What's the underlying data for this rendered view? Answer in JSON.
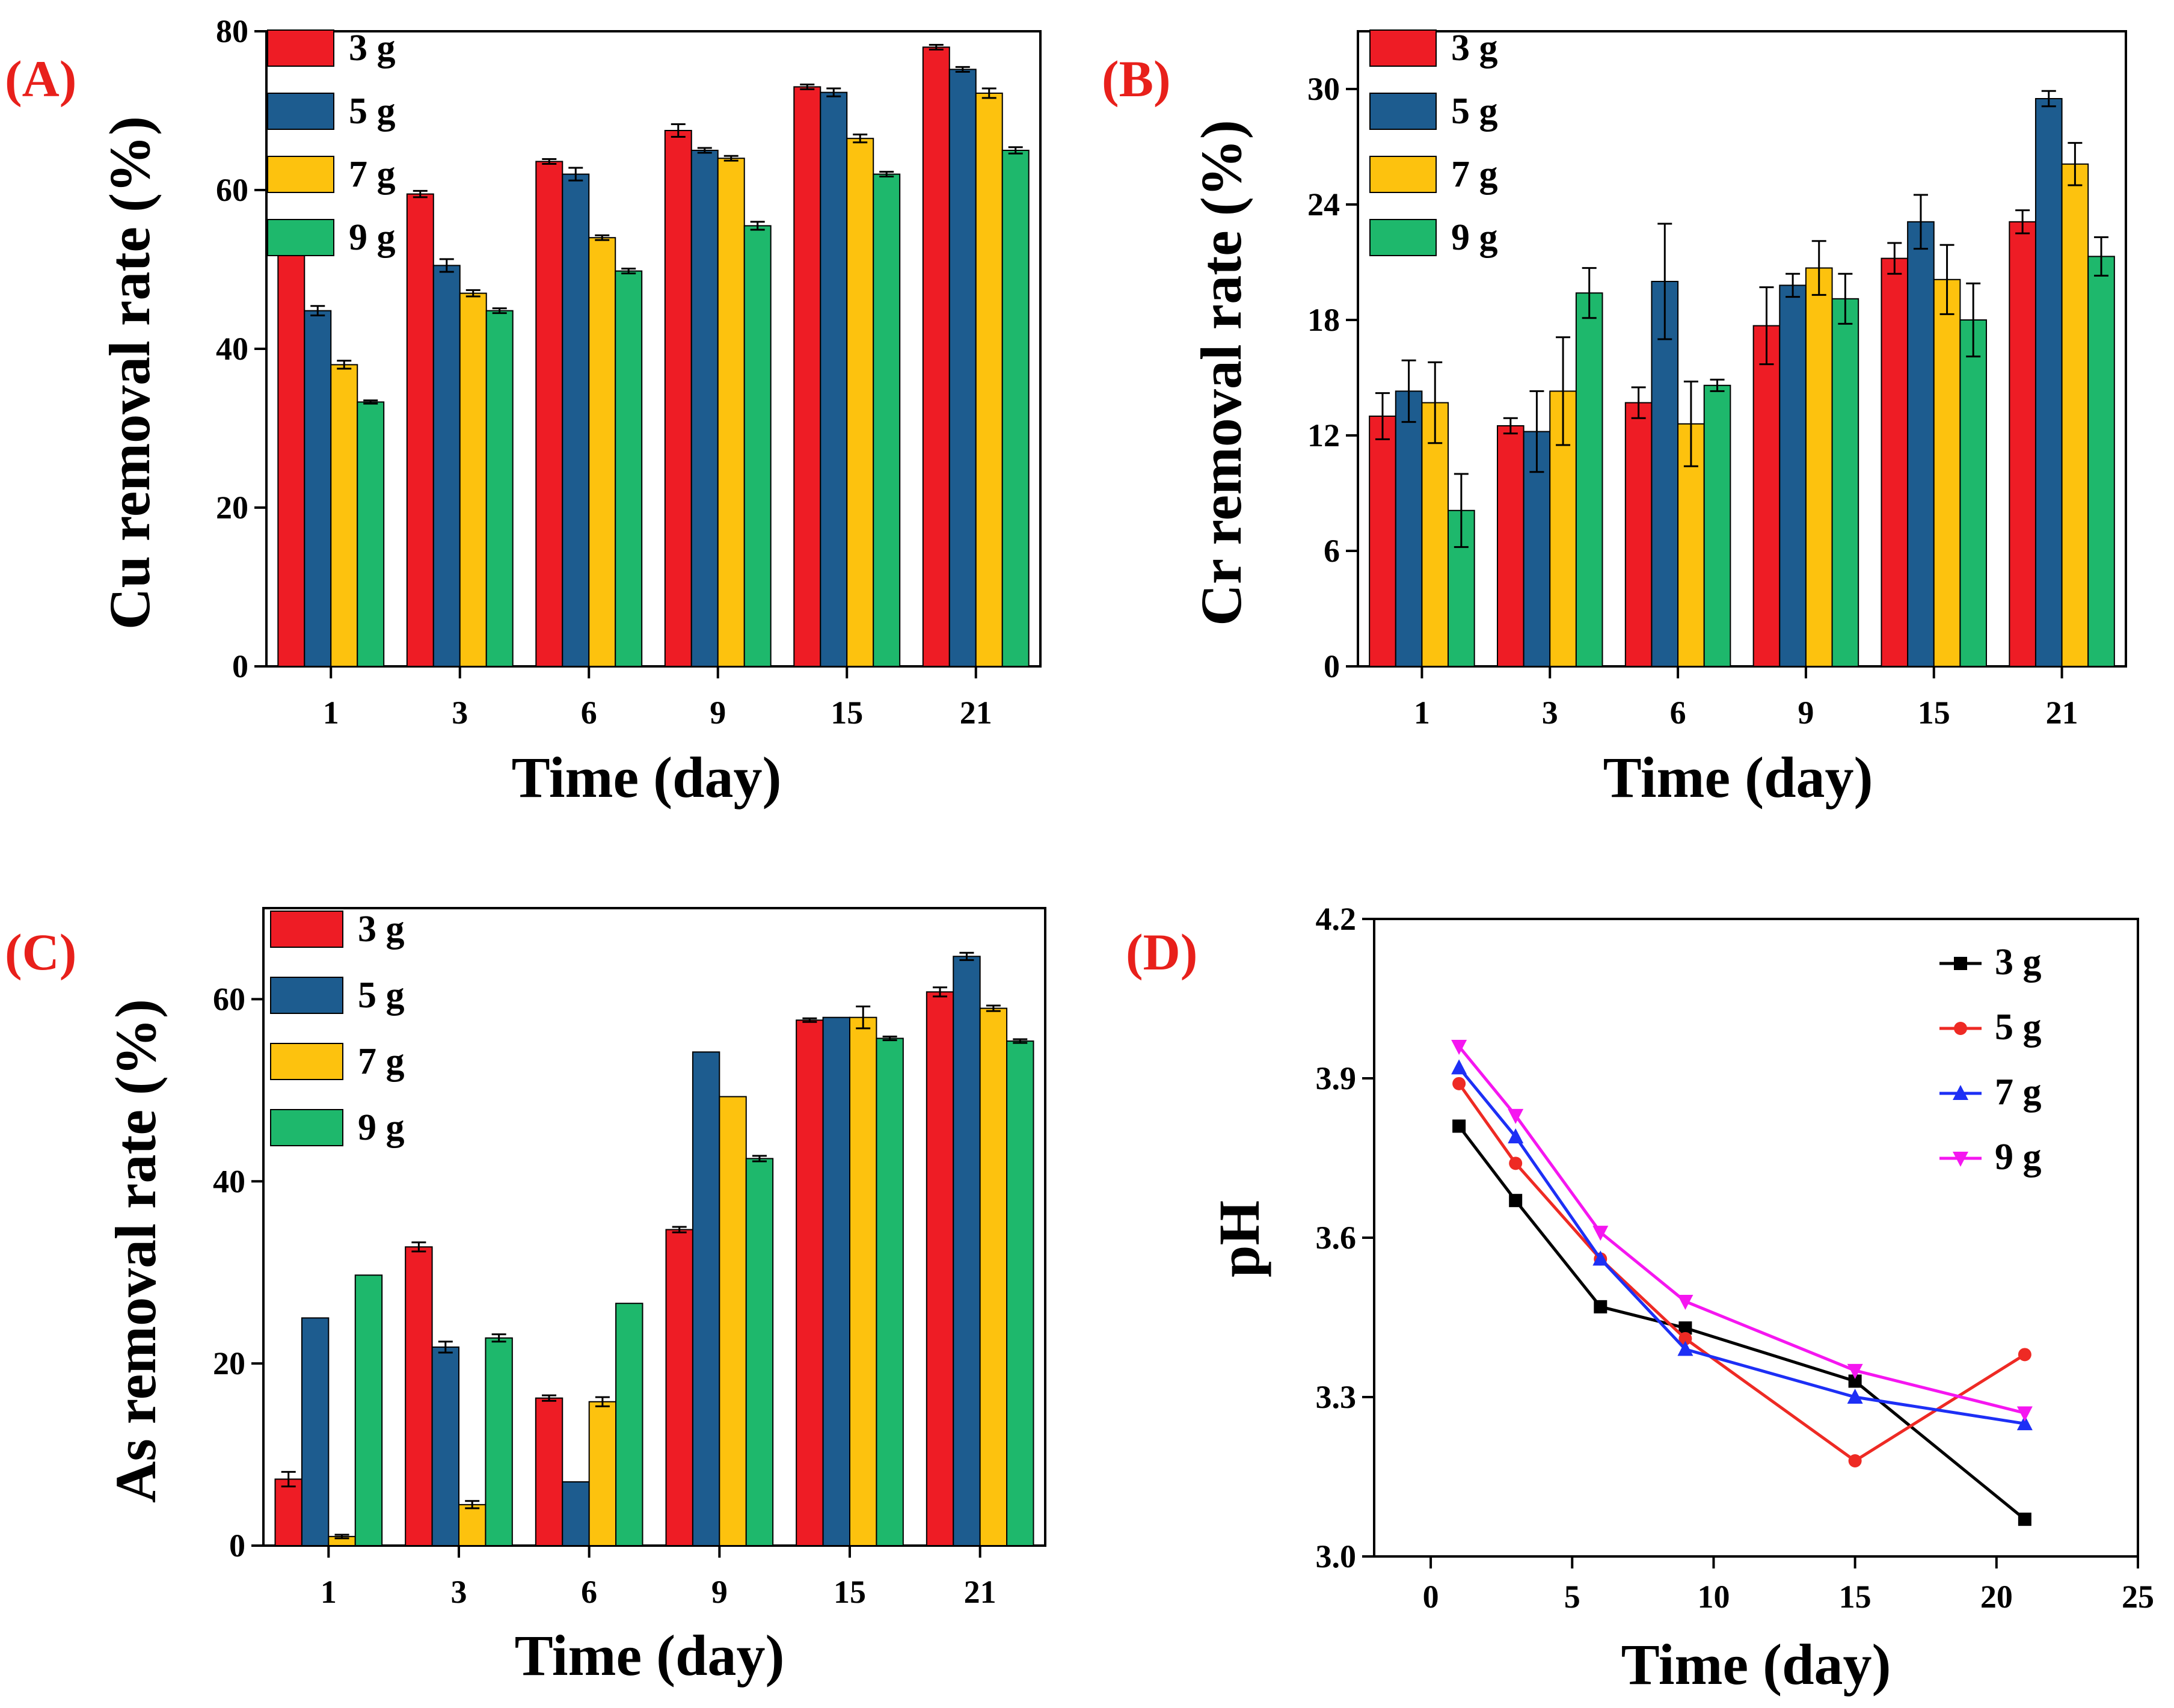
{
  "colors": {
    "3 g": "#ee1c25",
    "5 g": "#1d5c8f",
    "7 g": "#fdc20e",
    "9 g": "#1eb86c",
    "axis": "#000000",
    "panel_label": "#e8201b"
  },
  "line_colors": {
    "3 g": "#000000",
    "5 g": "#ee2a24",
    "7 g": "#1d2ff5",
    "9 g": "#f516f0"
  },
  "chart_data": [
    {
      "id": "A",
      "panel_label": "(A)",
      "type": "bar",
      "title": "",
      "xlabel": "Time (day)",
      "ylabel": "Cu removal rate (%)",
      "categories": [
        "1",
        "3",
        "6",
        "9",
        "15",
        "21"
      ],
      "ylim": [
        0,
        80
      ],
      "yticks": [
        0,
        20,
        40,
        60,
        80
      ],
      "legend_position": "top-left",
      "series": [
        {
          "name": "3 g",
          "values": [
            52.5,
            59.5,
            63.6,
            67.5,
            73.0,
            78.0
          ],
          "errors": [
            0.4,
            0.4,
            0.3,
            0.8,
            0.3,
            0.3
          ]
        },
        {
          "name": "5 g",
          "values": [
            44.8,
            50.5,
            62.0,
            65.0,
            72.3,
            75.2
          ],
          "errors": [
            0.6,
            0.8,
            0.8,
            0.3,
            0.5,
            0.3
          ]
        },
        {
          "name": "7 g",
          "values": [
            38.0,
            47.0,
            54.0,
            64.0,
            66.5,
            72.2
          ],
          "errors": [
            0.5,
            0.4,
            0.3,
            0.3,
            0.5,
            0.6
          ]
        },
        {
          "name": "9 g",
          "values": [
            33.3,
            44.8,
            49.8,
            55.5,
            62.0,
            65.0
          ],
          "errors": [
            0.2,
            0.3,
            0.3,
            0.5,
            0.3,
            0.4
          ]
        }
      ]
    },
    {
      "id": "B",
      "panel_label": "(B)",
      "type": "bar",
      "title": "",
      "xlabel": "Time (day)",
      "ylabel": "Cr removal rate (%)",
      "categories": [
        "1",
        "3",
        "6",
        "9",
        "15",
        "21"
      ],
      "ylim": [
        0,
        33
      ],
      "yticks": [
        0,
        6,
        12,
        18,
        24,
        30
      ],
      "legend_position": "top-left",
      "series": [
        {
          "name": "3 g",
          "values": [
            13.0,
            12.5,
            13.7,
            17.7,
            21.2,
            23.1
          ],
          "errors": [
            1.2,
            0.4,
            0.8,
            2.0,
            0.8,
            0.6
          ]
        },
        {
          "name": "5 g",
          "values": [
            14.3,
            12.2,
            20.0,
            19.8,
            23.1,
            29.5
          ],
          "errors": [
            1.6,
            2.1,
            3.0,
            0.6,
            1.4,
            0.4
          ]
        },
        {
          "name": "7 g",
          "values": [
            13.7,
            14.3,
            12.6,
            20.7,
            20.1,
            26.1
          ],
          "errors": [
            2.1,
            2.8,
            2.2,
            1.4,
            1.8,
            1.1
          ]
        },
        {
          "name": "9 g",
          "values": [
            8.1,
            19.4,
            14.6,
            19.1,
            18.0,
            21.3
          ],
          "errors": [
            1.9,
            1.3,
            0.3,
            1.3,
            1.9,
            1.0
          ]
        }
      ]
    },
    {
      "id": "C",
      "panel_label": "(C)",
      "type": "bar",
      "title": "",
      "xlabel": "Time (day)",
      "ylabel": "As removal rate (%)",
      "categories": [
        "1",
        "3",
        "6",
        "9",
        "15",
        "21"
      ],
      "ylim": [
        0,
        70
      ],
      "yticks": [
        0,
        20,
        40,
        60
      ],
      "legend_position": "top-left",
      "series": [
        {
          "name": "3 g",
          "values": [
            7.3,
            32.8,
            16.2,
            34.7,
            57.7,
            60.8
          ],
          "errors": [
            0.8,
            0.5,
            0.3,
            0.3,
            0.2,
            0.5
          ]
        },
        {
          "name": "5 g",
          "values": [
            25.0,
            21.8,
            7.0,
            54.2,
            58.0,
            64.7
          ],
          "errors": [
            0.0,
            0.6,
            0.0,
            0.0,
            0.0,
            0.4
          ]
        },
        {
          "name": "7 g",
          "values": [
            1.0,
            4.5,
            15.8,
            49.3,
            58.0,
            59.0
          ],
          "errors": [
            0.2,
            0.4,
            0.5,
            0.0,
            1.2,
            0.3
          ]
        },
        {
          "name": "9 g",
          "values": [
            29.7,
            22.8,
            26.6,
            42.5,
            55.7,
            55.4
          ],
          "errors": [
            0.0,
            0.4,
            0.0,
            0.3,
            0.2,
            0.2
          ]
        }
      ]
    },
    {
      "id": "D",
      "panel_label": "(D)",
      "type": "line",
      "title": "",
      "xlabel": "Time (day)",
      "ylabel": "pH",
      "x": [
        1,
        3,
        6,
        9,
        15,
        21
      ],
      "xlim": [
        -2,
        25
      ],
      "ylim": [
        3.0,
        4.2
      ],
      "xticks": [
        0,
        5,
        10,
        15,
        20,
        25
      ],
      "yticks": [
        3.0,
        3.3,
        3.6,
        3.9,
        4.2
      ],
      "ytick_labels": [
        "3.0",
        "3.3",
        "3.6",
        "3.9",
        "4.2"
      ],
      "legend_position": "top-right",
      "series": [
        {
          "name": "3 g",
          "marker": "square",
          "values": [
            3.81,
            3.67,
            3.47,
            3.43,
            3.33,
            3.07
          ]
        },
        {
          "name": "5 g",
          "marker": "circle",
          "values": [
            3.89,
            3.74,
            3.56,
            3.41,
            3.18,
            3.38
          ]
        },
        {
          "name": "7 g",
          "marker": "triangle-up",
          "values": [
            3.92,
            3.79,
            3.56,
            3.39,
            3.3,
            3.25
          ]
        },
        {
          "name": "9 g",
          "marker": "triangle-down",
          "values": [
            3.96,
            3.83,
            3.61,
            3.48,
            3.35,
            3.27
          ]
        }
      ]
    }
  ]
}
